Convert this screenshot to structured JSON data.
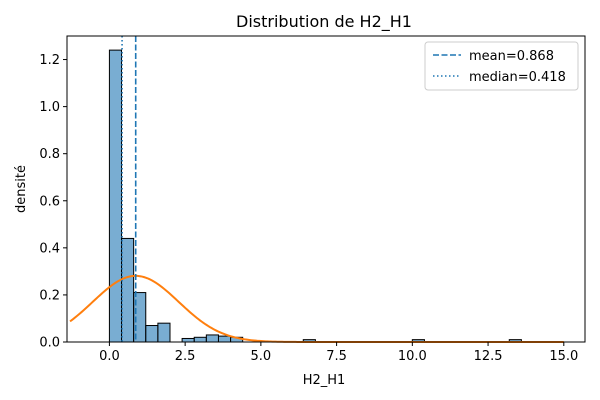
{
  "chart_data": {
    "type": "bar",
    "title": "Distribution de H2_H1",
    "xlabel": "H2_H1",
    "ylabel": "densité",
    "xlim": [
      -1.4,
      15.7
    ],
    "ylim": [
      0,
      1.3
    ],
    "xticks": [
      0.0,
      2.5,
      5.0,
      7.5,
      10.0,
      12.5,
      15.0
    ],
    "xtick_labels": [
      "0.0",
      "2.5",
      "5.0",
      "7.5",
      "10.0",
      "12.5",
      "15.0"
    ],
    "yticks": [
      0.0,
      0.2,
      0.4,
      0.6,
      0.8,
      1.0,
      1.2
    ],
    "ytick_labels": [
      "0.0",
      "0.2",
      "0.4",
      "0.6",
      "0.8",
      "1.0",
      "1.2"
    ],
    "bin_width": 0.4,
    "bins": [
      {
        "x0": 0.0,
        "value": 1.24
      },
      {
        "x0": 0.4,
        "value": 0.44
      },
      {
        "x0": 0.8,
        "value": 0.21
      },
      {
        "x0": 1.2,
        "value": 0.07
      },
      {
        "x0": 1.6,
        "value": 0.08
      },
      {
        "x0": 2.0,
        "value": 0.0
      },
      {
        "x0": 2.4,
        "value": 0.015
      },
      {
        "x0": 2.8,
        "value": 0.02
      },
      {
        "x0": 3.2,
        "value": 0.03
      },
      {
        "x0": 3.6,
        "value": 0.025
      },
      {
        "x0": 4.0,
        "value": 0.02
      },
      {
        "x0": 6.4,
        "value": 0.01
      },
      {
        "x0": 10.0,
        "value": 0.01
      },
      {
        "x0": 13.2,
        "value": 0.01
      }
    ],
    "bar_color": "#1f77b4",
    "density_curve": {
      "color": "#ff7f0e",
      "mean": 0.868,
      "sd": 1.42,
      "x_range": [
        -1.3,
        15.0
      ]
    },
    "reference_lines": [
      {
        "name": "mean=0.868",
        "value": 0.868,
        "style": "dashed",
        "color": "#1f77b4"
      },
      {
        "name": "median=0.418",
        "value": 0.418,
        "style": "dotted",
        "color": "#1f77b4"
      }
    ],
    "legend": {
      "placement": "top-right",
      "entries": [
        "mean=0.868",
        "median=0.418"
      ]
    }
  }
}
